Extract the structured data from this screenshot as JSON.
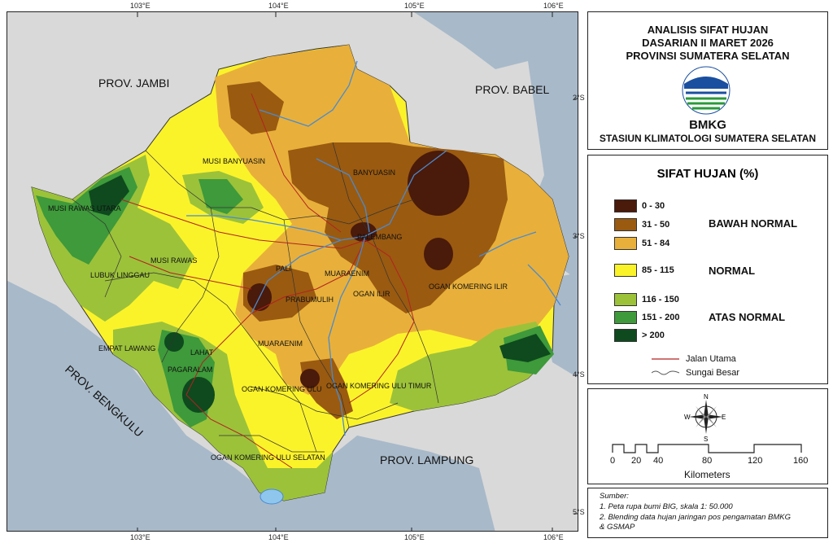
{
  "map": {
    "longitude_ticks": [
      "103°E",
      "104°E",
      "105°E",
      "106°E"
    ],
    "latitude_ticks": [
      "2°S",
      "3°S",
      "4°S",
      "5°S"
    ],
    "province_labels": [
      "PROV. JAMBI",
      "PROV. BABEL",
      "PROV. BENGKULU",
      "PROV. LAMPUNG"
    ],
    "region_labels": [
      "MUSI BANYUASIN",
      "BANYUASIN",
      "MUSI RAWAS UTARA",
      "MUSI RAWAS",
      "LUBUK LINGGAU",
      "PALEMBANG",
      "PALI",
      "MUARAENIM",
      "OGAN ILIR",
      "PRABUMULIH",
      "OGAN KOMERING ILIR",
      "EMPAT LAWANG",
      "LAHAT",
      "MUARAENIM",
      "PAGARALAM",
      "OGAN KOMERING ULU",
      "OGAN KOMERING ULU TIMUR",
      "OGAN KOMERING ULU SELATAN"
    ]
  },
  "title": {
    "lines": [
      "ANALISIS SIFAT HUJAN",
      "DASARIAN II MARET 2026",
      "PROVINSI SUMATERA SELATAN"
    ],
    "agency": "BMKG",
    "station": "STASIUN KLIMATOLOGI SUMATERA SELATAN",
    "logo_icon": "bmkg-logo-icon"
  },
  "legend": {
    "heading": "SIFAT HUJAN (%)",
    "classes": [
      {
        "range": "0 - 30",
        "color": "#4a1a0a"
      },
      {
        "range": "31 - 50",
        "color": "#9a5a10"
      },
      {
        "range": "51 - 84",
        "color": "#e8b03a"
      },
      {
        "range": "85 - 115",
        "color": "#fbf32a"
      },
      {
        "range": "116 - 150",
        "color": "#9cc23a"
      },
      {
        "range": "151 - 200",
        "color": "#3e9a3a"
      },
      {
        "range": "> 200",
        "color": "#0e4a1e"
      }
    ],
    "categories": [
      "BAWAH NORMAL",
      "NORMAL",
      "ATAS NORMAL"
    ],
    "lines": [
      {
        "label": "Jalan Utama",
        "color": "#b22222"
      },
      {
        "label": "Sungai Besar",
        "color": "#4a8ad0"
      }
    ]
  },
  "scale": {
    "compass_letters": [
      "N",
      "E",
      "S",
      "W"
    ],
    "ticks": [
      "0",
      "20",
      "40",
      "80",
      "120",
      "160"
    ],
    "unit": "Kilometers"
  },
  "source": {
    "heading": "Sumber:",
    "items": [
      "1. Peta rupa bumi BIG, skala 1: 50.000",
      "2. Blending data hujan jaringan pos pengamatan BMKG",
      "& GSMAP"
    ]
  }
}
